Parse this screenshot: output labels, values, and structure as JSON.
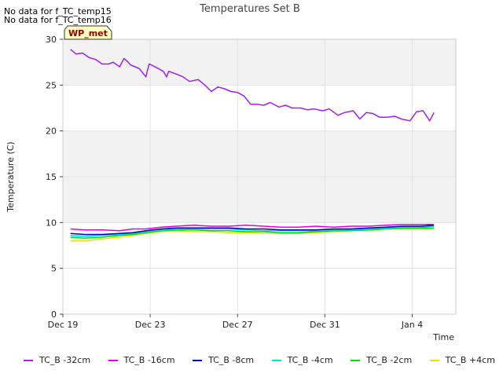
{
  "notes": [
    "No data for f_TC_temp15",
    "No data for f_TC_temp16"
  ],
  "chart_data": {
    "type": "line",
    "title": "Temperatures Set B",
    "xlabel": "Time",
    "ylabel": "Temperature (C)",
    "x_tick_labels": [
      "Dec 19",
      "Dec 23",
      "Dec 27",
      "Dec 31",
      "Jan 4"
    ],
    "x_tick_days": [
      0,
      4,
      8,
      12,
      16
    ],
    "xlim_days": [
      0,
      18
    ],
    "ylim": [
      0,
      30
    ],
    "y_ticks": [
      0,
      5,
      10,
      15,
      20,
      25,
      30
    ],
    "y_bands": [
      [
        10,
        20
      ],
      [
        25,
        30
      ]
    ],
    "grid": true,
    "annotation": "WP_met",
    "legend_position": "bottom",
    "series": [
      {
        "name": "TC_B -32cm",
        "color": "#a020f0",
        "x": [
          0.35,
          0.6,
          0.9,
          1.2,
          1.5,
          1.8,
          2.1,
          2.3,
          2.6,
          2.8,
          2.95,
          3.1,
          3.3,
          3.5,
          3.8,
          3.95,
          4.05,
          4.3,
          4.6,
          4.75,
          4.85,
          5.2,
          5.5,
          5.8,
          6.2,
          6.5,
          6.8,
          7.1,
          7.4,
          7.7,
          8.0,
          8.3,
          8.6,
          8.9,
          9.2,
          9.5,
          9.9,
          10.2,
          10.5,
          10.9,
          11.2,
          11.5,
          11.9,
          12.2,
          12.6,
          12.9,
          13.3,
          13.6,
          13.9,
          14.2,
          14.5,
          14.9,
          15.2,
          15.5,
          15.9,
          16.2,
          16.5,
          16.8,
          17.0
        ],
        "y": [
          28.9,
          28.4,
          28.5,
          28.0,
          27.8,
          27.3,
          27.3,
          27.5,
          27.0,
          27.9,
          27.6,
          27.2,
          27.0,
          26.8,
          25.9,
          27.3,
          27.2,
          26.9,
          26.5,
          25.9,
          26.5,
          26.2,
          25.9,
          25.4,
          25.6,
          25.0,
          24.3,
          24.8,
          24.6,
          24.3,
          24.2,
          23.8,
          22.9,
          22.9,
          22.8,
          23.1,
          22.6,
          22.8,
          22.5,
          22.5,
          22.3,
          22.4,
          22.2,
          22.4,
          21.7,
          22.0,
          22.2,
          21.3,
          22.0,
          21.9,
          21.5,
          21.5,
          21.6,
          21.3,
          21.1,
          22.1,
          22.2,
          21.1,
          22.0
        ]
      },
      {
        "name": "TC_B -16cm",
        "color": "#e000e0",
        "x": [
          0.35,
          1.0,
          1.8,
          2.6,
          3.2,
          3.8,
          4.5,
          5.2,
          6.0,
          6.8,
          7.6,
          8.4,
          9.2,
          10.0,
          10.8,
          11.6,
          12.4,
          13.2,
          14.0,
          14.8,
          15.6,
          16.4,
          17.0
        ],
        "y": [
          9.3,
          9.2,
          9.2,
          9.1,
          9.3,
          9.3,
          9.5,
          9.6,
          9.7,
          9.6,
          9.6,
          9.7,
          9.6,
          9.5,
          9.5,
          9.6,
          9.5,
          9.6,
          9.6,
          9.7,
          9.8,
          9.8,
          9.8
        ]
      },
      {
        "name": "TC_B -8cm",
        "color": "#0000b0",
        "x": [
          0.35,
          1.0,
          1.8,
          2.6,
          3.2,
          3.8,
          4.5,
          5.2,
          6.0,
          6.8,
          7.6,
          8.4,
          9.2,
          10.0,
          10.8,
          11.6,
          12.4,
          13.2,
          14.0,
          14.8,
          15.6,
          16.4,
          17.0
        ],
        "y": [
          8.8,
          8.7,
          8.7,
          8.8,
          8.9,
          9.1,
          9.3,
          9.4,
          9.4,
          9.4,
          9.4,
          9.3,
          9.3,
          9.2,
          9.2,
          9.2,
          9.3,
          9.3,
          9.4,
          9.5,
          9.6,
          9.6,
          9.7
        ]
      },
      {
        "name": "TC_B -4cm",
        "color": "#00e0e0",
        "x": [
          0.35,
          1.0,
          1.8,
          2.6,
          3.2,
          3.8,
          4.5,
          5.2,
          6.0,
          6.8,
          7.6,
          8.4,
          9.2,
          10.0,
          10.8,
          11.6,
          12.4,
          13.2,
          14.0,
          14.8,
          15.6,
          16.4,
          17.0
        ],
        "y": [
          8.6,
          8.5,
          8.6,
          8.7,
          8.8,
          9.0,
          9.2,
          9.3,
          9.3,
          9.3,
          9.3,
          9.2,
          9.1,
          9.1,
          9.1,
          9.1,
          9.2,
          9.2,
          9.3,
          9.4,
          9.5,
          9.5,
          9.6
        ]
      },
      {
        "name": "TC_B -2cm",
        "color": "#00dd00",
        "x": [
          0.35,
          1.0,
          1.8,
          2.6,
          3.2,
          3.8,
          4.5,
          5.2,
          6.0,
          6.8,
          7.6,
          8.4,
          9.2,
          10.0,
          10.8,
          11.6,
          12.4,
          13.2,
          14.0,
          14.8,
          15.6,
          16.4,
          17.0
        ],
        "y": [
          8.4,
          8.3,
          8.4,
          8.6,
          8.7,
          8.9,
          9.1,
          9.2,
          9.2,
          9.1,
          9.1,
          9.0,
          9.0,
          8.9,
          8.9,
          9.0,
          9.1,
          9.1,
          9.2,
          9.3,
          9.4,
          9.4,
          9.4
        ]
      },
      {
        "name": "TC_B +4cm",
        "color": "#f0e000",
        "x": [
          0.35,
          1.0,
          1.8,
          2.6,
          3.2,
          3.8,
          4.5,
          5.2,
          6.0,
          6.8,
          7.6,
          8.4,
          9.2,
          10.0,
          10.8,
          11.6,
          12.4,
          13.2,
          14.0,
          14.8,
          15.6,
          16.4,
          17.0
        ],
        "y": [
          8.0,
          8.0,
          8.2,
          8.4,
          8.6,
          8.8,
          9.0,
          9.1,
          9.0,
          9.0,
          8.9,
          8.9,
          8.8,
          8.8,
          8.8,
          8.9,
          9.0,
          9.1,
          9.2,
          9.3,
          9.3,
          9.3,
          9.3
        ]
      }
    ]
  }
}
